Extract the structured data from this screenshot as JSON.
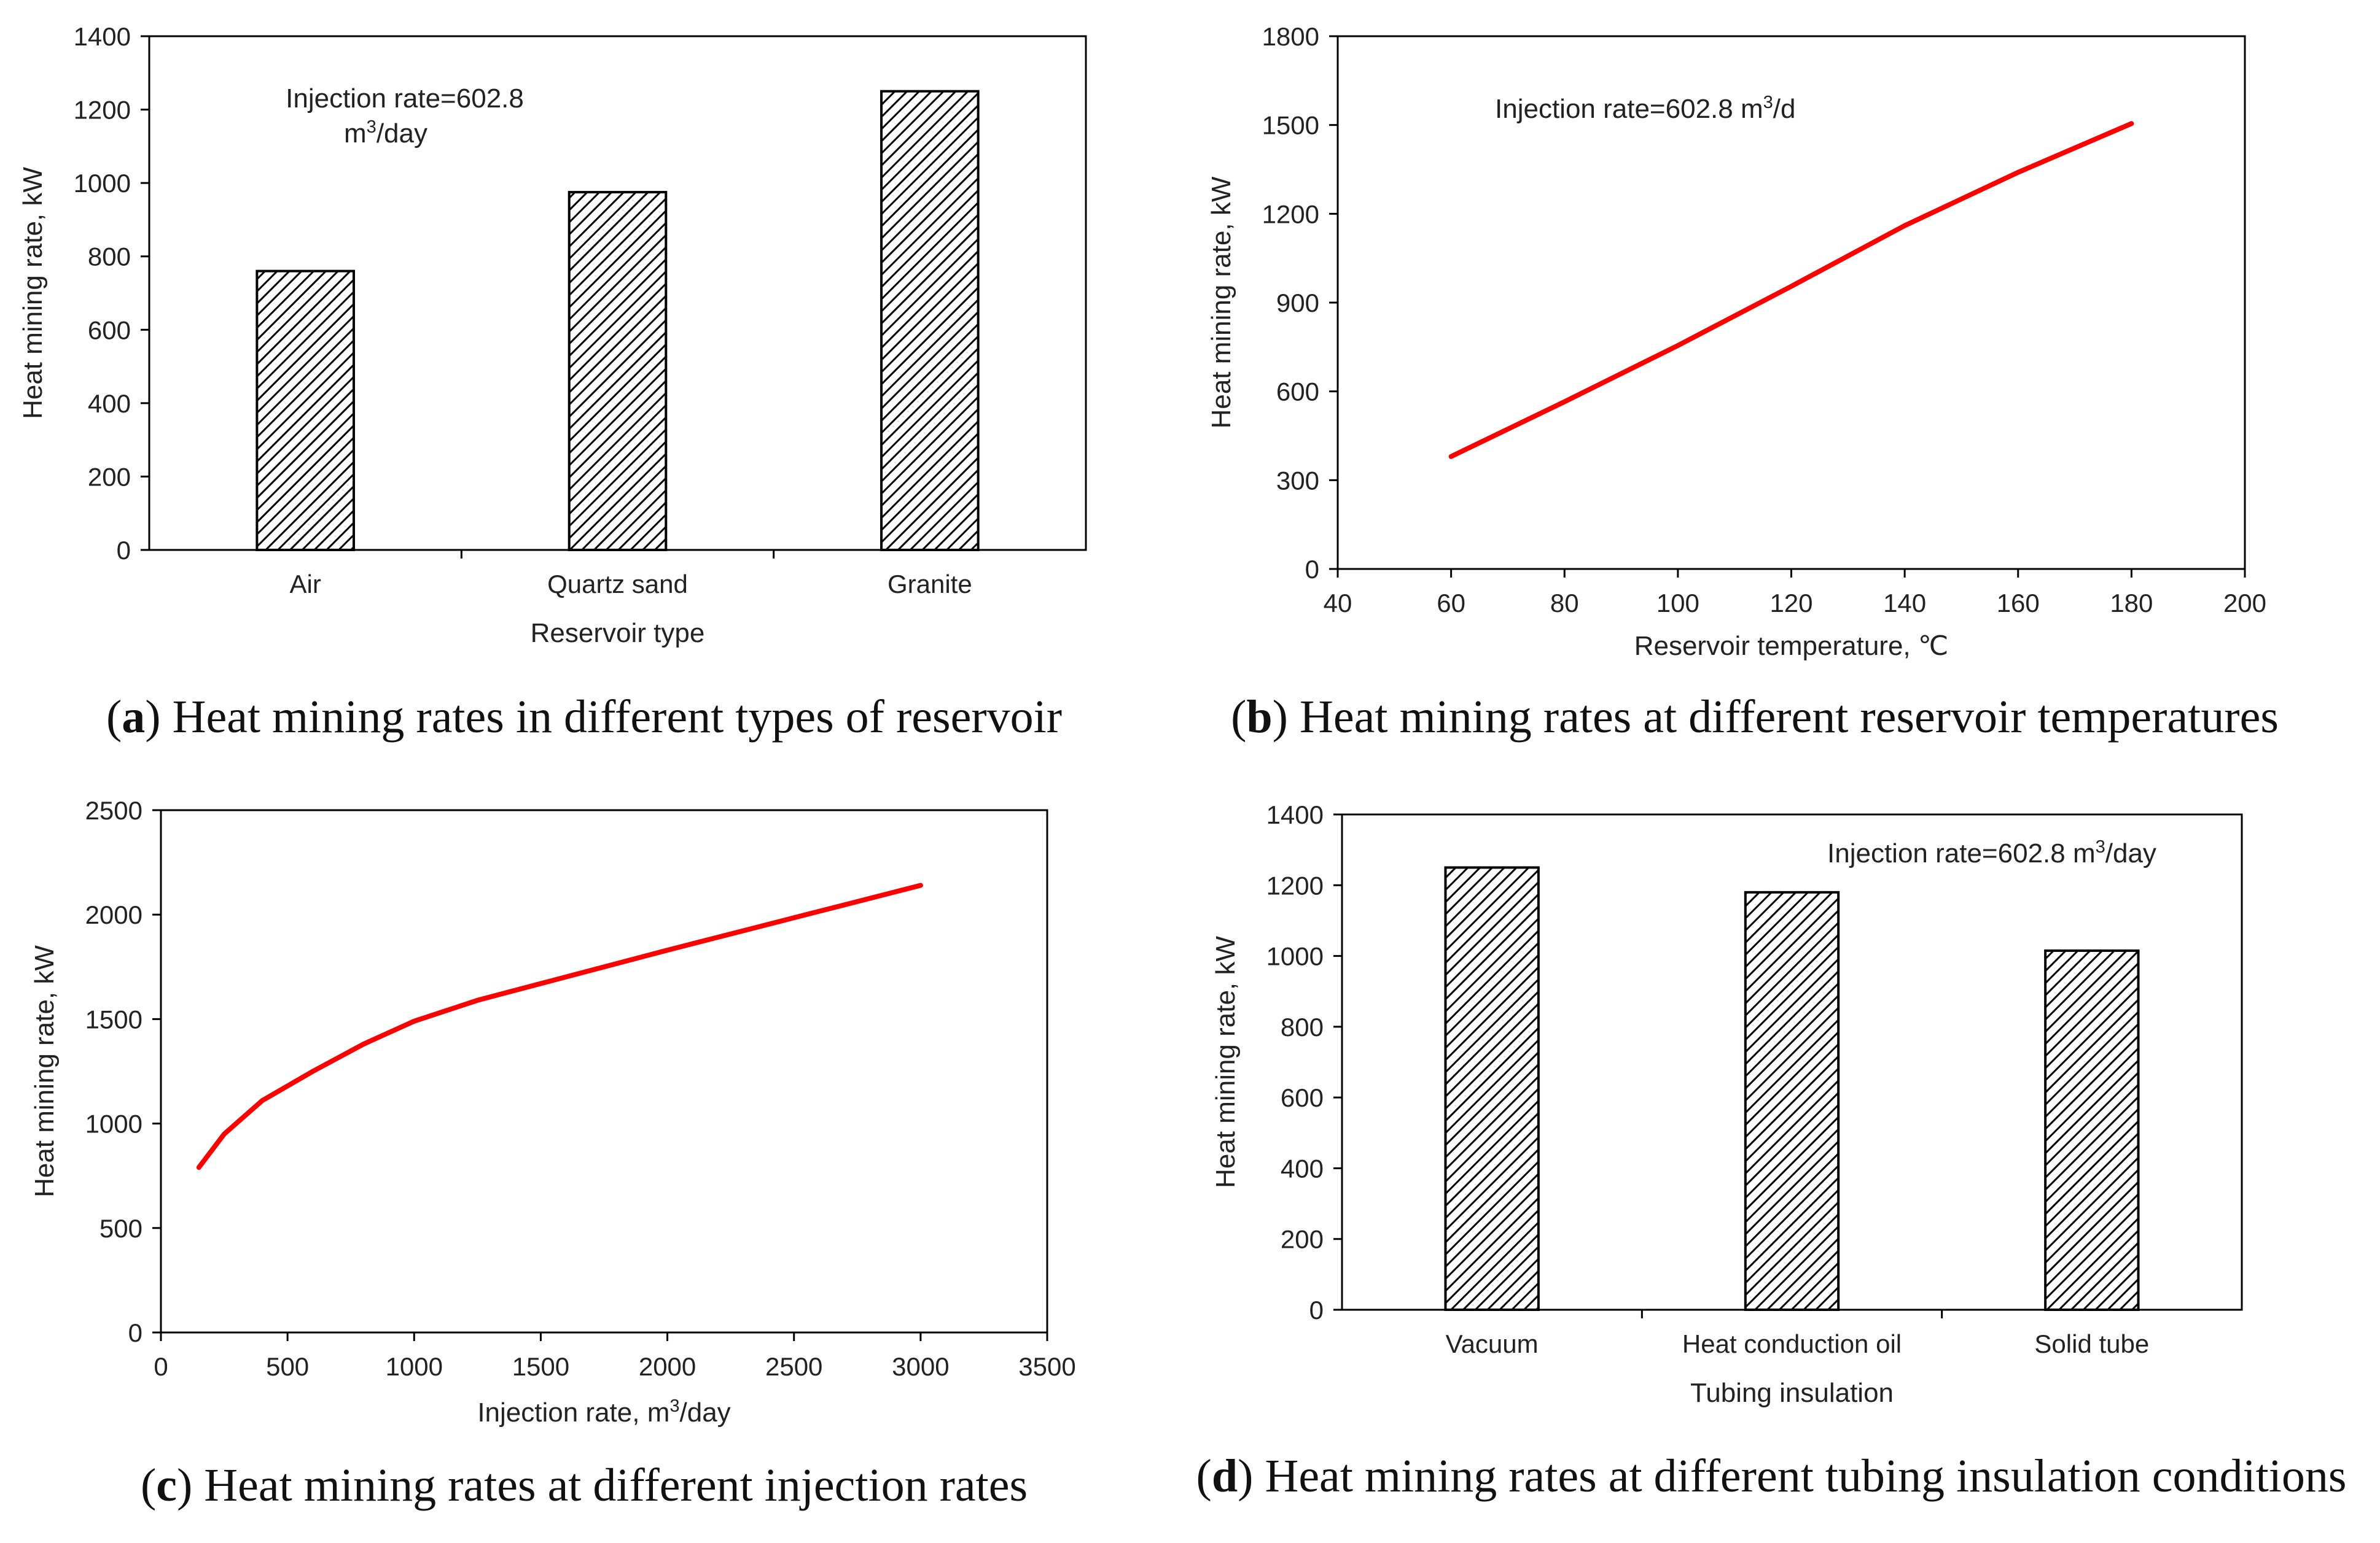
{
  "colors": {
    "line": "#ff0000",
    "bar_stroke": "#000000",
    "axis": "#000000",
    "text": "#222222"
  },
  "chart_data": [
    {
      "id": "a",
      "type": "bar",
      "categories": [
        "Air",
        "Quartz sand",
        "Granite"
      ],
      "values": [
        760,
        975,
        1250
      ],
      "ylabel": "Heat mining rate, kW",
      "xlabel": "Reservoir  type",
      "ylim": [
        0,
        1400
      ],
      "yticks": [
        0,
        200,
        400,
        600,
        800,
        1000,
        1200,
        1400
      ],
      "annotation": [
        "Injection rate=602.8",
        "m",
        "3",
        "/day"
      ],
      "caption": {
        "letter": "a",
        "text": " Heat mining rates in different types of reservoir"
      },
      "bar_style": "diagonal-hatch",
      "grid": false
    },
    {
      "id": "b",
      "type": "line",
      "series": [
        {
          "x": [
            60,
            80,
            100,
            120,
            140,
            160,
            180
          ],
          "y": [
            380,
            565,
            755,
            955,
            1160,
            1340,
            1505
          ]
        }
      ],
      "ylabel": "Heat mining rate, kW",
      "xlabel": "Reservoir  temperature, ℃",
      "xlim": [
        40,
        200
      ],
      "ylim": [
        0,
        1800
      ],
      "xticks": [
        40,
        60,
        80,
        100,
        120,
        140,
        160,
        180,
        200
      ],
      "yticks": [
        0,
        300,
        600,
        900,
        1200,
        1500,
        1800
      ],
      "annotation": [
        "Injection rate=602.8  m",
        "3",
        "/d"
      ],
      "caption": {
        "letter": "b",
        "text": " Heat mining rates at different reservoir temperatures"
      },
      "grid": false
    },
    {
      "id": "c",
      "type": "line",
      "series": [
        {
          "x": [
            150,
            250,
            400,
            600,
            800,
            1000,
            1250,
            1500,
            2000,
            2500,
            3000
          ],
          "y": [
            790,
            950,
            1110,
            1250,
            1380,
            1490,
            1590,
            1670,
            1830,
            1985,
            2140
          ]
        }
      ],
      "ylabel": "Heat mining rate, kW",
      "xlabel": [
        "Injection rate, m",
        "3",
        "/day"
      ],
      "xlim": [
        0,
        3500
      ],
      "ylim": [
        0,
        2500
      ],
      "xticks": [
        0,
        500,
        1000,
        1500,
        2000,
        2500,
        3000,
        3500
      ],
      "yticks": [
        0,
        500,
        1000,
        1500,
        2000,
        2500
      ],
      "caption": {
        "letter": "c",
        "text": " Heat mining rates at different injection rates"
      },
      "grid": false
    },
    {
      "id": "d",
      "type": "bar",
      "categories": [
        "Vacuum",
        "Heat conduction oil",
        "Solid tube"
      ],
      "values": [
        1250,
        1180,
        1015
      ],
      "ylabel": "Heat mining rate, kW",
      "xlabel": "Tubing insulation",
      "ylim": [
        0,
        1400
      ],
      "yticks": [
        0,
        200,
        400,
        600,
        800,
        1000,
        1200,
        1400
      ],
      "annotation": [
        "Injection rate=602.8  m",
        "3",
        "/day"
      ],
      "caption": {
        "letter": "d",
        "text": " Heat mining rates at different tubing insulation conditions"
      },
      "bar_style": "diagonal-hatch",
      "grid": false
    }
  ]
}
